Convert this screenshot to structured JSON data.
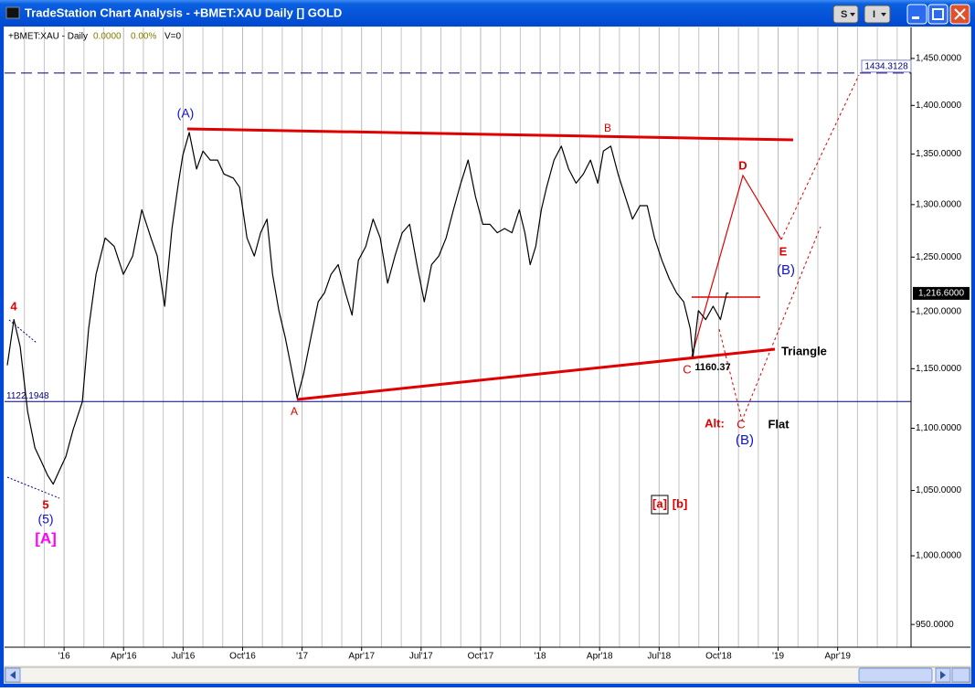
{
  "window": {
    "title": "TradeStation Chart Analysis - +BMET:XAU Daily [] GOLD",
    "buttons": [
      "S",
      "I"
    ]
  },
  "chart_data": {
    "type": "line",
    "status": {
      "change": "0.0000",
      "change_pct": "0.00%",
      "volume": "V=0"
    },
    "x": [
      -2.86,
      -2.53,
      -2.21,
      -1.84,
      -1.47,
      -1.15,
      -0.83,
      -0.55,
      -0.23,
      0.09,
      0.46,
      0.92,
      1.24,
      1.61,
      2.07,
      2.53,
      2.99,
      3.46,
      3.92,
      4.38,
      4.7,
      5.07,
      5.44,
      5.76,
      5.99,
      6.31,
      6.68,
      7.0,
      7.37,
      7.74,
      8.06,
      8.53,
      8.85,
      9.22,
      9.59,
      9.91,
      10.23,
      10.51,
      10.83,
      11.15,
      11.43,
      11.75,
      12.07,
      12.44,
      12.81,
      13.13,
      13.46,
      13.82,
      14.19,
      14.52,
      14.84,
      15.21,
      15.58,
      15.94,
      16.31,
      16.68,
      17.05,
      17.42,
      17.79,
      18.16,
      18.53,
      18.89,
      19.26,
      19.63,
      20.0,
      20.37,
      20.74,
      21.11,
      21.47,
      21.84,
      22.21,
      22.58,
      22.95,
      23.23,
      23.5,
      23.78,
      24.06,
      24.33,
      24.7,
      25.07,
      25.44,
      25.81,
      26.18,
      26.54,
      26.91,
      27.19,
      27.56,
      27.93,
      28.29,
      28.66,
      29.03,
      29.4,
      29.77,
      30.14,
      30.51,
      30.88,
      31.24,
      31.57,
      31.71,
      31.98,
      32.35,
      32.72,
      33.09,
      33.41,
      33.5
    ],
    "series": [
      {
        "name": "+BMET:XAU - Daily",
        "color": "#000000",
        "values": [
          1153,
          1193,
          1169,
          1114,
          1084,
          1073,
          1062,
          1055,
          1066,
          1077,
          1099,
          1122,
          1185,
          1234,
          1268,
          1260,
          1234,
          1251,
          1295,
          1268,
          1251,
          1205,
          1277,
          1321,
          1349,
          1372,
          1335,
          1353,
          1344,
          1344,
          1330,
          1326,
          1317,
          1268,
          1251,
          1273,
          1286,
          1234,
          1201,
          1177,
          1153,
          1125,
          1145,
          1177,
          1209,
          1217,
          1234,
          1243,
          1217,
          1197,
          1247,
          1260,
          1286,
          1268,
          1226,
          1251,
          1273,
          1281,
          1243,
          1209,
          1243,
          1251,
          1268,
          1295,
          1321,
          1344,
          1308,
          1281,
          1281,
          1273,
          1277,
          1273,
          1295,
          1273,
          1243,
          1260,
          1295,
          1317,
          1344,
          1358,
          1335,
          1321,
          1330,
          1344,
          1321,
          1353,
          1358,
          1330,
          1308,
          1286,
          1299,
          1299,
          1268,
          1247,
          1230,
          1217,
          1209,
          1185,
          1160.37,
          1201,
          1193,
          1205,
          1193,
          1217,
          1216.6
        ]
      }
    ],
    "log_scale": true,
    "ylim": [
      934,
      1484
    ],
    "yticks": [
      {
        "value": 1450,
        "label": "1,450.0000"
      },
      {
        "value": 1400,
        "label": "1,400.0000"
      },
      {
        "value": 1350,
        "label": "1,350.0000"
      },
      {
        "value": 1300,
        "label": "1,300.0000"
      },
      {
        "value": 1250,
        "label": "1,250.0000"
      },
      {
        "value": 1200,
        "label": "1,200.0000"
      },
      {
        "value": 1150,
        "label": "1,150.0000"
      },
      {
        "value": 1100,
        "label": "1,100.0000"
      },
      {
        "value": 1050,
        "label": "1,050.0000"
      },
      {
        "value": 1000,
        "label": "1,000.0000"
      },
      {
        "value": 950,
        "label": "950.0000"
      }
    ],
    "xlim": [
      -3,
      42.7
    ],
    "xticks": [
      {
        "value": 0,
        "label": "'16"
      },
      {
        "value": 3,
        "label": "Apr'16"
      },
      {
        "value": 6,
        "label": "Jul'16"
      },
      {
        "value": 9,
        "label": "Oct'16"
      },
      {
        "value": 12,
        "label": "'17"
      },
      {
        "value": 15,
        "label": "Apr'17"
      },
      {
        "value": 18,
        "label": "Jul'17"
      },
      {
        "value": 21,
        "label": "Oct'17"
      },
      {
        "value": 24,
        "label": "'18"
      },
      {
        "value": 27,
        "label": "Apr'18"
      },
      {
        "value": 30,
        "label": "Jul'18"
      },
      {
        "value": 33,
        "label": "Oct'18"
      },
      {
        "value": 36,
        "label": "'19"
      },
      {
        "value": 39,
        "label": "Apr'19"
      }
    ],
    "x_minor_ticks": [
      -2,
      -1,
      1,
      2,
      4,
      5,
      7,
      8,
      10,
      11,
      13,
      14,
      16,
      17,
      19,
      20,
      22,
      23,
      25,
      26,
      28,
      29,
      31,
      32,
      34,
      35,
      37,
      38,
      40,
      41,
      42
    ],
    "grid": true,
    "reference_lines": [
      {
        "value": 1434.3128,
        "color": "#000080",
        "style": "dashed"
      },
      {
        "value": 1122.1948,
        "color": "#000080",
        "style": "solid"
      }
    ],
    "last_price": {
      "value": 1216.6,
      "label": "1,216.6000"
    },
    "annotations": [
      {
        "text": "(A)",
        "color": "#1010d0"
      },
      {
        "text": "4",
        "color": "#e00000"
      },
      {
        "text": "5",
        "color": "#e00000"
      },
      {
        "text": "(5)",
        "color": "#1010d0"
      },
      {
        "text": "[A]",
        "color": "#ff00ff"
      },
      {
        "text": "A",
        "color": "#e00000"
      },
      {
        "text": "B",
        "color": "#e00000"
      },
      {
        "text": "C",
        "color": "#e00000"
      },
      {
        "text": "1160.37",
        "color": "#000000"
      },
      {
        "text": "D",
        "color": "#e00000"
      },
      {
        "text": "E",
        "color": "#e00000"
      },
      {
        "text": "(B)",
        "color": "#1010d0"
      },
      {
        "text": "Triangle",
        "color": "#000000"
      },
      {
        "text": "Alt:",
        "color": "#e00000"
      },
      {
        "text": "C",
        "color": "#e00000"
      },
      {
        "text": "(B)",
        "color": "#1010d0"
      },
      {
        "text": "Flat",
        "color": "#000000"
      },
      {
        "text": "[a]",
        "color": "#e00000"
      },
      {
        "text": "[b]",
        "color": "#e00000"
      }
    ]
  }
}
